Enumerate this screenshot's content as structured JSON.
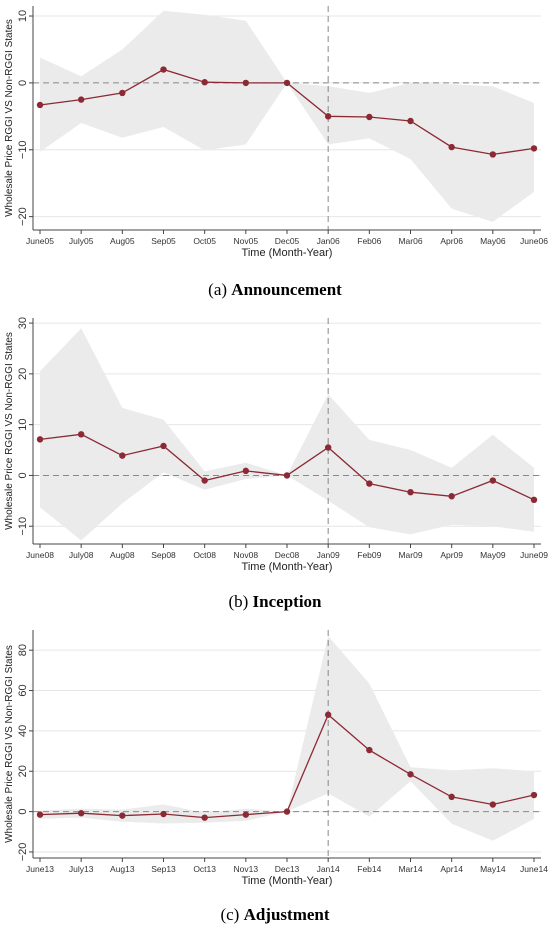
{
  "chart_data": [
    {
      "type": "line",
      "caption_label": "(a)",
      "caption_title": "Announcement",
      "xlabel": "Time (Month-Year)",
      "ylabel": "Wholesale Price RGGI VS Non-RGGI States",
      "categories": [
        "June05",
        "July05",
        "Aug05",
        "Sep05",
        "Oct05",
        "Nov05",
        "Dec05",
        "Jan06",
        "Feb06",
        "Mar06",
        "Apr06",
        "May06",
        "June06"
      ],
      "values": [
        -3.3,
        -2.5,
        -1.5,
        2.0,
        0.1,
        0.0,
        0.0,
        -5.0,
        -5.1,
        -5.7,
        -9.6,
        -10.7,
        -9.8
      ],
      "ci_upper": [
        3.8,
        1.0,
        5.0,
        10.8,
        10.2,
        9.3,
        0.0,
        -0.5,
        -1.5,
        0.0,
        -0.2,
        -0.5,
        -3.0
      ],
      "ci_lower": [
        -10.3,
        -6.0,
        -8.2,
        -6.6,
        -10.1,
        -9.2,
        0.0,
        -9.2,
        -8.3,
        -11.4,
        -18.8,
        -20.8,
        -16.3
      ],
      "yticks": [
        10,
        0,
        -10,
        -20
      ],
      "ylim": [
        -22,
        11.5
      ],
      "reference_x": "Jan06",
      "reference_y": 0,
      "colors": {
        "line": "#8b2a35",
        "band": "#ebebeb",
        "grid": "#e6e6e6",
        "reference": "#888888"
      }
    },
    {
      "type": "line",
      "caption_label": "(b)",
      "caption_title": "Inception",
      "xlabel": "Time (Month-Year)",
      "ylabel": "Wholesale Price RGGI VS Non-RGGI States",
      "categories": [
        "June08",
        "July08",
        "Aug08",
        "Sep08",
        "Oct08",
        "Nov08",
        "Dec08",
        "Jan09",
        "Feb09",
        "Mar09",
        "Apr09",
        "May09",
        "June09"
      ],
      "values": [
        7.1,
        8.1,
        3.9,
        5.8,
        -1.0,
        0.9,
        0.0,
        5.5,
        -1.6,
        -3.3,
        -4.1,
        -1.0,
        -4.8
      ],
      "ci_upper": [
        20.5,
        29.0,
        13.3,
        11.0,
        0.8,
        2.5,
        0.0,
        16.0,
        7.0,
        5.0,
        1.5,
        8.0,
        1.5
      ],
      "ci_lower": [
        -6.3,
        -12.8,
        -5.5,
        0.6,
        -2.8,
        -0.7,
        0.0,
        -5.0,
        -10.2,
        -11.6,
        -9.7,
        -10.0,
        -11.1
      ],
      "yticks": [
        30,
        20,
        10,
        0,
        -10
      ],
      "ylim": [
        -13.5,
        31
      ],
      "reference_x": "Jan09",
      "reference_y": 0,
      "colors": {
        "line": "#8b2a35",
        "band": "#ebebeb",
        "grid": "#e6e6e6",
        "reference": "#888888"
      }
    },
    {
      "type": "line",
      "caption_label": "(c)",
      "caption_title": "Adjustment",
      "xlabel": "Time (Month-Year)",
      "ylabel": "Wholesale Price RGGI VS Non-RGGI States",
      "categories": [
        "June13",
        "July13",
        "Aug13",
        "Sep13",
        "Oct13",
        "Nov13",
        "Dec13",
        "Jan14",
        "Feb14",
        "Mar14",
        "Apr14",
        "May14",
        "June14"
      ],
      "values": [
        -1.5,
        -0.8,
        -2.0,
        -1.2,
        -3.0,
        -1.5,
        0.0,
        48.0,
        30.5,
        18.5,
        7.3,
        3.5,
        8.2
      ],
      "ci_upper": [
        0.5,
        1.5,
        1.0,
        3.5,
        -0.5,
        1.5,
        0.0,
        87.0,
        63.5,
        22.0,
        20.5,
        21.5,
        20.0
      ],
      "ci_lower": [
        -3.5,
        -3.0,
        -5.0,
        -5.9,
        -5.5,
        -4.5,
        0.0,
        9.0,
        -2.5,
        15.0,
        -6.0,
        -14.5,
        -3.6
      ],
      "yticks": [
        80,
        60,
        40,
        20,
        0,
        -20
      ],
      "ylim": [
        -23,
        90
      ],
      "reference_x": "Jan14",
      "reference_y": 0,
      "colors": {
        "line": "#8b2a35",
        "band": "#ebebeb",
        "grid": "#e6e6e6",
        "reference": "#888888"
      }
    }
  ]
}
